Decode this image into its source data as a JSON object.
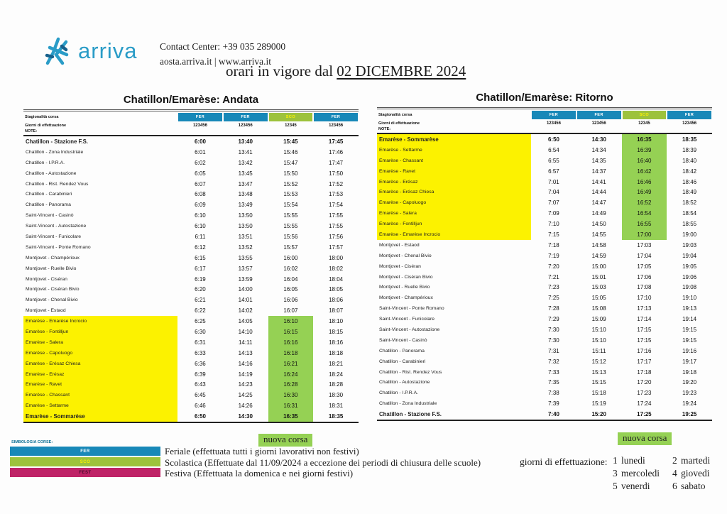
{
  "colors": {
    "fer_blue": "#1888b8",
    "sco_green": "#9dc23c",
    "fest_magenta": "#bf2367",
    "highlight_yellow": "#fcf200",
    "highlight_green": "#95d154",
    "brand_teal": "#2a9cc7"
  },
  "header": {
    "logo_text": "arriva",
    "contact_line1": "Contact Center: +39 035 289000",
    "contact_line2": "aosta.arriva.it | www.arriva.it",
    "title_prefix": "orari in vigore dal ",
    "title_date": "02 DICEMBRE 2024"
  },
  "tables": [
    {
      "title": "Chatillon/Emarèse: Andata",
      "header": {
        "stagionalita_label": "Stagionalità corsa",
        "giorni_label": "Giorni di effettuazione",
        "note_label": "NOTE:",
        "services": [
          {
            "type": "FER",
            "days": "123456"
          },
          {
            "type": "FER",
            "days": "123456"
          },
          {
            "type": "SCO",
            "days": "12345"
          },
          {
            "type": "FER",
            "days": "123456"
          }
        ]
      },
      "rows": [
        {
          "stop": "Chatillon - Stazione F.S.",
          "times": [
            "6:00",
            "13:40",
            "15:45",
            "17:45"
          ],
          "bold": true,
          "yellow": false,
          "green": false
        },
        {
          "stop": "Chatillon - Zona Industriale",
          "times": [
            "6:01",
            "13:41",
            "15:46",
            "17:46"
          ],
          "bold": false,
          "yellow": false,
          "green": false
        },
        {
          "stop": "Chatillon - I.P.R.A.",
          "times": [
            "6:02",
            "13:42",
            "15:47",
            "17:47"
          ],
          "bold": false,
          "yellow": false,
          "green": false
        },
        {
          "stop": "Chatillon - Autostazione",
          "times": [
            "6:05",
            "13:45",
            "15:50",
            "17:50"
          ],
          "bold": false,
          "yellow": false,
          "green": false
        },
        {
          "stop": "Chatillon - Rist. Rendez Vous",
          "times": [
            "6:07",
            "13:47",
            "15:52",
            "17:52"
          ],
          "bold": false,
          "yellow": false,
          "green": false
        },
        {
          "stop": "Chatillon - Carabinieri",
          "times": [
            "6:08",
            "13:48",
            "15:53",
            "17:53"
          ],
          "bold": false,
          "yellow": false,
          "green": false
        },
        {
          "stop": "Chatillon - Panorama",
          "times": [
            "6:09",
            "13:49",
            "15:54",
            "17:54"
          ],
          "bold": false,
          "yellow": false,
          "green": false
        },
        {
          "stop": "Saint-Vincent - Casinò",
          "times": [
            "6:10",
            "13:50",
            "15:55",
            "17:55"
          ],
          "bold": false,
          "yellow": false,
          "green": false
        },
        {
          "stop": "Saint-Vincent - Autostazione",
          "times": [
            "6:10",
            "13:50",
            "15:55",
            "17:55"
          ],
          "bold": false,
          "yellow": false,
          "green": false
        },
        {
          "stop": "Saint-Vincent - Funicolare",
          "times": [
            "6:11",
            "13:51",
            "15:56",
            "17:56"
          ],
          "bold": false,
          "yellow": false,
          "green": false
        },
        {
          "stop": "Saint-Vincent - Ponte Romano",
          "times": [
            "6:12",
            "13:52",
            "15:57",
            "17:57"
          ],
          "bold": false,
          "yellow": false,
          "green": false
        },
        {
          "stop": "Montjovet - Champérioux",
          "times": [
            "6:15",
            "13:55",
            "16:00",
            "18:00"
          ],
          "bold": false,
          "yellow": false,
          "green": false
        },
        {
          "stop": "Montjovet - Ruelle Bivio",
          "times": [
            "6:17",
            "13:57",
            "16:02",
            "18:02"
          ],
          "bold": false,
          "yellow": false,
          "green": false
        },
        {
          "stop": "Montjovet - Ciséran",
          "times": [
            "6:19",
            "13:59",
            "16:04",
            "18:04"
          ],
          "bold": false,
          "yellow": false,
          "green": false
        },
        {
          "stop": "Montjovet - Ciséran Bivio",
          "times": [
            "6:20",
            "14:00",
            "16:05",
            "18:05"
          ],
          "bold": false,
          "yellow": false,
          "green": false
        },
        {
          "stop": "Montjovet - Chenal Bivio",
          "times": [
            "6:21",
            "14:01",
            "16:06",
            "18:06"
          ],
          "bold": false,
          "yellow": false,
          "green": false
        },
        {
          "stop": "Montjovet - Estaod",
          "times": [
            "6:22",
            "14:02",
            "16:07",
            "18:07"
          ],
          "bold": false,
          "yellow": false,
          "green": false
        },
        {
          "stop": "Emarèse - Emarèse Incrocio",
          "times": [
            "6:25",
            "14:05",
            "16:10",
            "18:10"
          ],
          "bold": false,
          "yellow": true,
          "green": true
        },
        {
          "stop": "Emarèse - Fontilljun",
          "times": [
            "6:30",
            "14:10",
            "16:15",
            "18:15"
          ],
          "bold": false,
          "yellow": true,
          "green": true
        },
        {
          "stop": "Emarèse - Salera",
          "times": [
            "6:31",
            "14:11",
            "16:16",
            "18:16"
          ],
          "bold": false,
          "yellow": true,
          "green": true
        },
        {
          "stop": "Emarèse - Capoluogo",
          "times": [
            "6:33",
            "14:13",
            "16:18",
            "18:18"
          ],
          "bold": false,
          "yellow": true,
          "green": true
        },
        {
          "stop": "Emarèse - Erésaz Chiesa",
          "times": [
            "6:36",
            "14:16",
            "16:21",
            "18:21"
          ],
          "bold": false,
          "yellow": true,
          "green": true
        },
        {
          "stop": "Emarèse - Erésaz",
          "times": [
            "6:39",
            "14:19",
            "16:24",
            "18:24"
          ],
          "bold": false,
          "yellow": true,
          "green": true
        },
        {
          "stop": "Emarèse - Ravet",
          "times": [
            "6:43",
            "14:23",
            "16:28",
            "18:28"
          ],
          "bold": false,
          "yellow": true,
          "green": true
        },
        {
          "stop": "Emarèse - Chassant",
          "times": [
            "6:45",
            "14:25",
            "16:30",
            "18:30"
          ],
          "bold": false,
          "yellow": true,
          "green": true
        },
        {
          "stop": "Emarèse - Settarme",
          "times": [
            "6:46",
            "14:26",
            "16:31",
            "18:31"
          ],
          "bold": false,
          "yellow": true,
          "green": true
        },
        {
          "stop": "Emarèse - Sommarèse",
          "times": [
            "6:50",
            "14:30",
            "16:35",
            "18:35"
          ],
          "bold": true,
          "yellow": true,
          "green": true
        }
      ]
    },
    {
      "title": "Chatillon/Emarèse: Ritorno",
      "header": {
        "stagionalita_label": "Stagionalità corsa",
        "giorni_label": "Giorni di effettuazione",
        "note_label": "NOTE:",
        "services": [
          {
            "type": "FER",
            "days": "123456"
          },
          {
            "type": "FER",
            "days": "123456"
          },
          {
            "type": "SCO",
            "days": "12345"
          },
          {
            "type": "FER",
            "days": "123456"
          }
        ]
      },
      "rows": [
        {
          "stop": "Emarèse - Sommarèse",
          "times": [
            "6:50",
            "14:30",
            "16:35",
            "18:35"
          ],
          "bold": true,
          "yellow": true,
          "green": true
        },
        {
          "stop": "Emarèse - Settarme",
          "times": [
            "6:54",
            "14:34",
            "16:39",
            "18:39"
          ],
          "bold": false,
          "yellow": true,
          "green": true
        },
        {
          "stop": "Emarèse - Chassant",
          "times": [
            "6:55",
            "14:35",
            "16:40",
            "18:40"
          ],
          "bold": false,
          "yellow": true,
          "green": true
        },
        {
          "stop": "Emarèse - Ravet",
          "times": [
            "6:57",
            "14:37",
            "16:42",
            "18:42"
          ],
          "bold": false,
          "yellow": true,
          "green": true
        },
        {
          "stop": "Emarèse - Erésaz",
          "times": [
            "7:01",
            "14:41",
            "16:46",
            "18:46"
          ],
          "bold": false,
          "yellow": true,
          "green": true
        },
        {
          "stop": "Emarèse - Erésaz Chiesa",
          "times": [
            "7:04",
            "14:44",
            "16:49",
            "18:49"
          ],
          "bold": false,
          "yellow": true,
          "green": true
        },
        {
          "stop": "Emarèse - Capoluogo",
          "times": [
            "7:07",
            "14:47",
            "16:52",
            "18:52"
          ],
          "bold": false,
          "yellow": true,
          "green": true
        },
        {
          "stop": "Emarèse - Salera",
          "times": [
            "7:09",
            "14:49",
            "16:54",
            "18:54"
          ],
          "bold": false,
          "yellow": true,
          "green": true
        },
        {
          "stop": "Emarèse - Fontilljun",
          "times": [
            "7:10",
            "14:50",
            "16:55",
            "18:55"
          ],
          "bold": false,
          "yellow": true,
          "green": true
        },
        {
          "stop": "Emarèse - Emarèse Incrocio",
          "times": [
            "7:15",
            "14:55",
            "17:00",
            "19:00"
          ],
          "bold": false,
          "yellow": true,
          "green": true
        },
        {
          "stop": "Montjovet - Estaod",
          "times": [
            "7:18",
            "14:58",
            "17:03",
            "19:03"
          ],
          "bold": false,
          "yellow": false,
          "green": false
        },
        {
          "stop": "Montjovet - Chenal Bivio",
          "times": [
            "7:19",
            "14:59",
            "17:04",
            "19:04"
          ],
          "bold": false,
          "yellow": false,
          "green": false
        },
        {
          "stop": "Montjovet - Ciséran",
          "times": [
            "7:20",
            "15:00",
            "17:05",
            "19:05"
          ],
          "bold": false,
          "yellow": false,
          "green": false
        },
        {
          "stop": "Montjovet - Ciséran Bivio",
          "times": [
            "7:21",
            "15:01",
            "17:06",
            "19:06"
          ],
          "bold": false,
          "yellow": false,
          "green": false
        },
        {
          "stop": "Montjovet - Ruelle Bivio",
          "times": [
            "7:23",
            "15:03",
            "17:08",
            "19:08"
          ],
          "bold": false,
          "yellow": false,
          "green": false
        },
        {
          "stop": "Montjovet - Champérioux",
          "times": [
            "7:25",
            "15:05",
            "17:10",
            "19:10"
          ],
          "bold": false,
          "yellow": false,
          "green": false
        },
        {
          "stop": "Saint-Vincent - Ponte Romano",
          "times": [
            "7:28",
            "15:08",
            "17:13",
            "19:13"
          ],
          "bold": false,
          "yellow": false,
          "green": false
        },
        {
          "stop": "Saint-Vincent - Funicolare",
          "times": [
            "7:29",
            "15:09",
            "17:14",
            "19:14"
          ],
          "bold": false,
          "yellow": false,
          "green": false
        },
        {
          "stop": "Saint-Vincent - Autostazione",
          "times": [
            "7:30",
            "15:10",
            "17:15",
            "19:15"
          ],
          "bold": false,
          "yellow": false,
          "green": false
        },
        {
          "stop": "Saint-Vincent - Casinò",
          "times": [
            "7:30",
            "15:10",
            "17:15",
            "19:15"
          ],
          "bold": false,
          "yellow": false,
          "green": false
        },
        {
          "stop": "Chatillon - Panorama",
          "times": [
            "7:31",
            "15:11",
            "17:16",
            "19:16"
          ],
          "bold": false,
          "yellow": false,
          "green": false
        },
        {
          "stop": "Chatillon - Carabinieri",
          "times": [
            "7:32",
            "15:12",
            "17:17",
            "19:17"
          ],
          "bold": false,
          "yellow": false,
          "green": false
        },
        {
          "stop": "Chatillon - Rist. Rendez Vous",
          "times": [
            "7:33",
            "15:13",
            "17:18",
            "19:18"
          ],
          "bold": false,
          "yellow": false,
          "green": false
        },
        {
          "stop": "Chatillon - Autostazione",
          "times": [
            "7:35",
            "15:15",
            "17:20",
            "19:20"
          ],
          "bold": false,
          "yellow": false,
          "green": false
        },
        {
          "stop": "Chatillon - I.P.R.A.",
          "times": [
            "7:38",
            "15:18",
            "17:23",
            "19:23"
          ],
          "bold": false,
          "yellow": false,
          "green": false
        },
        {
          "stop": "Chatillon - Zona Industriale",
          "times": [
            "7:39",
            "15:19",
            "17:24",
            "19:24"
          ],
          "bold": false,
          "yellow": false,
          "green": false
        },
        {
          "stop": "Chatillon - Stazione F.S.",
          "times": [
            "7:40",
            "15:20",
            "17:25",
            "19:25"
          ],
          "bold": true,
          "yellow": false,
          "green": false
        }
      ]
    }
  ],
  "footer": {
    "simbologia_label": "SIMBOLOGIA CORSE:",
    "legend": [
      {
        "code": "FER",
        "color": "#1888b8",
        "text_color": "#ffffff",
        "description": "Feriale (effettuata tutti i giorni lavorativi non festivi)"
      },
      {
        "code": "SCO",
        "color": "#9dc23c",
        "text_color": "#fdf200",
        "description": "Scolastica (Effettuate dal 11/09/2024 a eccezione dei periodi di chiusura delle scuole)"
      },
      {
        "code": "FEST",
        "color": "#bf2367",
        "text_color": "#4a0d2c",
        "description": "Festiva (Effettuata la domenica e nei giorni festivi)"
      }
    ],
    "nuova_corsa_label": "nuova corsa",
    "giorni_effettuazione_label": "giorni di effettuazione:",
    "days": [
      {
        "num": "1",
        "name": "lunedi"
      },
      {
        "num": "2",
        "name": "martedi"
      },
      {
        "num": "3",
        "name": "mercoledi"
      },
      {
        "num": "4",
        "name": "giovedi"
      },
      {
        "num": "5",
        "name": "venerdi"
      },
      {
        "num": "6",
        "name": "sabato"
      }
    ]
  }
}
